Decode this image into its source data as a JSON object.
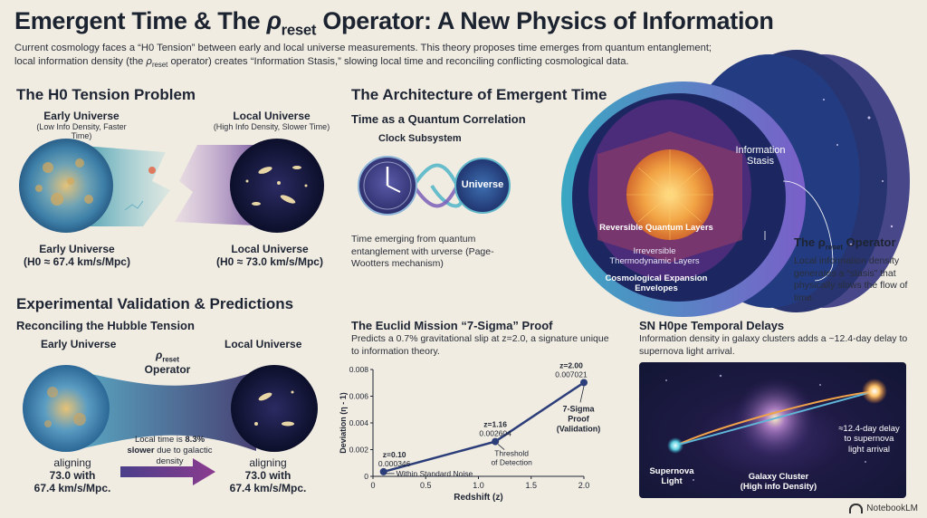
{
  "header": {
    "title_prefix": "Emergent Time & The ",
    "title_rho": "ρ",
    "title_sub": "reset",
    "title_suffix": " Operator: A New Physics of Information",
    "intro_1": "Current cosmology faces a “H0 Tension” between early and local universe measurements. This theory proposes time emerges from quantum entanglement;",
    "intro_2a": "local information density (the ",
    "intro_2rho": "ρ",
    "intro_2sub": "reset",
    "intro_2b": " operator) creates “Information Stasis,” slowing local time and reconciling conflicting cosmological data."
  },
  "h0_section": {
    "heading": "The H0 Tension Problem",
    "early_title": "Early Universe",
    "early_sub": "(Low Info Density, Faster Time)",
    "local_title": "Local Universe",
    "local_sub": "(High Info Density, Slower Time)",
    "early_bottom_1": "Early Universe",
    "early_bottom_2": "(H0 ≈ 67.4 km/s/Mpc)",
    "local_bottom_1": "Local Universe",
    "local_bottom_2": "(H0 ≈ 73.0 km/s/Mpc)"
  },
  "architecture": {
    "heading": "The Architecture of Emergent Time",
    "subheading": "Time as a Quantum Correlation",
    "clock_label": "Clock Subsystem",
    "universe_label": "Universe",
    "caption": "Time emerging from quantum entanglement with urverse (Page-Wootters mechanism)",
    "layer_reversible": "Reversible Quantum Layers",
    "layer_irreversible_1": "Irreversible",
    "layer_irreversible_2": "Thermodynamic Layers",
    "layer_envelope_1": "Cosmological Expansion",
    "layer_envelope_2": "Envelopes",
    "stasis_1": "Information",
    "stasis_2": "Stasis",
    "operator_prefix": "The ",
    "operator_rho": "ρ",
    "operator_sub": "reset",
    "operator_suffix": " Operator",
    "operator_desc": "Local information density generates a “stasis” that physically slows the flow of time."
  },
  "validation": {
    "heading": "Experimental Validation & Predictions",
    "subheading": "Reconciling the Hubble Tension",
    "early_label": "Early Universe",
    "local_label": "Local Universe",
    "operator_rho": "ρ",
    "operator_sub": "reset",
    "operator_word": "Operator",
    "mid_text_1": "Local time is ",
    "mid_text_bold": "8.3%",
    "mid_text_2": "slower",
    "mid_text_3": " due to galactic density",
    "left_bottom_1": "aligning",
    "left_bottom_2": "73.0 with",
    "left_bottom_3": "67.4 km/s/Mpc.",
    "right_bottom_1": "aligning",
    "right_bottom_2": "73.0 with",
    "right_bottom_3": "67.4 km/s/Mpc."
  },
  "euclid": {
    "heading": "The Euclid Mission “7-Sigma” Proof",
    "desc": "Predicts a 0.7% gravitational slip at z=2.0, a signature unique to information theory."
  },
  "sn": {
    "heading": "SN H0pe Temporal Delays",
    "desc": "Information density in galaxy clusters adds a ~12.4-day delay to supernova light arrival.",
    "delay_1": "≈12.4-day delay",
    "delay_2": "to supernova",
    "delay_3": "light arrival",
    "supernova_1": "Supernova",
    "supernova_2": "Light",
    "cluster_1": "Galaxy Cluster",
    "cluster_2": "(High info Density)"
  },
  "chart_data": {
    "type": "line",
    "xlabel": "Redshift (z)",
    "ylabel": "Deviation (η - 1)",
    "xlim": [
      0,
      2.0
    ],
    "ylim": [
      0,
      0.008
    ],
    "xticks": [
      "0",
      "0.5",
      "1.0",
      "1.5",
      "2.0"
    ],
    "yticks": [
      "0",
      "0.002",
      "0.004",
      "0.006",
      "0.008"
    ],
    "x": [
      0.1,
      1.16,
      2.0
    ],
    "y": [
      0.000346,
      0.002604,
      0.007021
    ],
    "point_labels": [
      {
        "z": "z=0.10",
        "v": "0.000346"
      },
      {
        "z": "z=1.16",
        "v": "0.002604"
      },
      {
        "z": "z=2.00",
        "v": "0.007021"
      }
    ],
    "annotations": {
      "noise": "Within Standard Noise",
      "threshold_1": "Threshold",
      "threshold_2": "of Detection",
      "proof_1": "7-Sigma",
      "proof_2": "Proof",
      "proof_3": "(Validation)"
    },
    "color": "#2c3e7a"
  },
  "brand": {
    "name": "NotebookLM"
  }
}
